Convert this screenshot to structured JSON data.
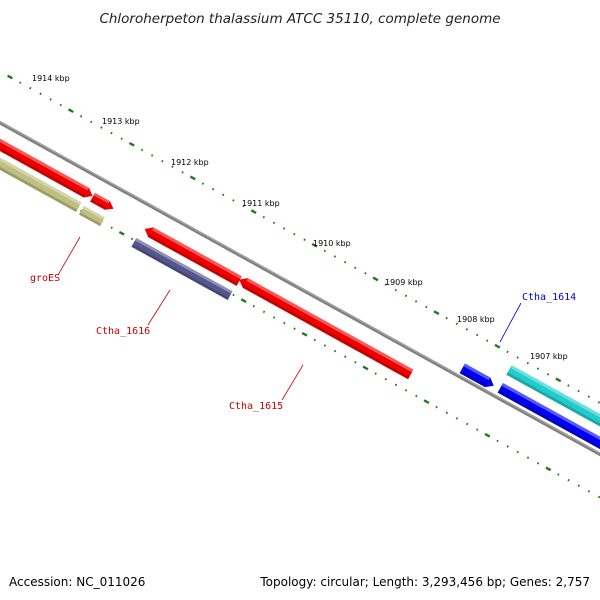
{
  "title": "Chloroherpeton thalassium ATCC 35110, complete genome",
  "footer": {
    "accession": "Accession: NC_011026",
    "summary": "Topology: circular; Length: 3,293,456 bp; Genes: 2,757"
  },
  "ruler": {
    "unit": "kbp",
    "labels": [
      "1914 kbp",
      "1913 kbp",
      "1912 kbp",
      "1911 kbp",
      "1910 kbp",
      "1909 kbp",
      "1908 kbp",
      "1907 kbp"
    ]
  },
  "genes": [
    {
      "id": "groES",
      "label": "groES",
      "color": "#bfbf80",
      "strand": "reverse"
    },
    {
      "id": "Ctha_1616",
      "label": "Ctha_1616",
      "color": "#55558f",
      "strand": "reverse"
    },
    {
      "id": "Ctha_1615",
      "label": "Ctha_1615",
      "color": "#ee0000",
      "strand": "forward"
    },
    {
      "id": "Ctha_1614",
      "label": "Ctha_1614",
      "color": "#0000ee",
      "strand": "forward"
    }
  ],
  "colors": {
    "backbone": "#808080",
    "tick": "#1f7a1f",
    "cds_red": "#ee0000",
    "cds_olive": "#bfbf80",
    "cds_purple": "#55558f",
    "cds_blue": "#0000ee",
    "cds_cyan": "#22cccc",
    "label_red": "#cc0000",
    "label_blue": "#0000cc"
  }
}
